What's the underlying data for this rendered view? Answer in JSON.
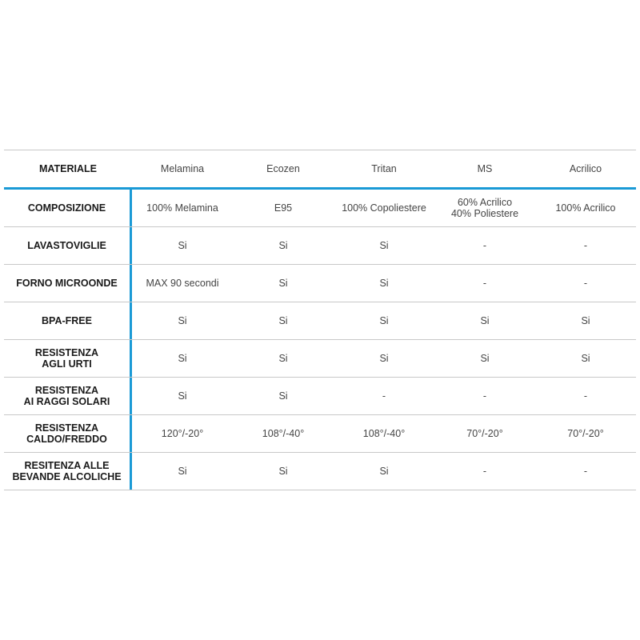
{
  "table": {
    "header": {
      "label": "MATERIALE",
      "columns": [
        "Melamina",
        "Ecozen",
        "Tritan",
        "MS",
        "Acrilico"
      ]
    },
    "rows": [
      {
        "label": "COMPOSIZIONE",
        "values": [
          "100% Melamina",
          "E95",
          "100% Copoliestere",
          "60% Acrilico\n40% Poliestere",
          "100% Acrilico"
        ]
      },
      {
        "label": "LAVASTOVIGLIE",
        "values": [
          "Si",
          "Si",
          "Si",
          "-",
          "-"
        ]
      },
      {
        "label": "FORNO MICROONDE",
        "values": [
          "MAX 90 secondi",
          "Si",
          "Si",
          "-",
          "-"
        ]
      },
      {
        "label": "BPA-FREE",
        "values": [
          "Si",
          "Si",
          "Si",
          "Si",
          "Si"
        ]
      },
      {
        "label": "RESISTENZA\nAGLI URTI",
        "values": [
          "Si",
          "Si",
          "Si",
          "Si",
          "Si"
        ]
      },
      {
        "label": "RESISTENZA\nAI RAGGI SOLARI",
        "values": [
          "Si",
          "Si",
          "-",
          "-",
          "-"
        ]
      },
      {
        "label": "RESISTENZA\nCALDO/FREDDO",
        "values": [
          "120°/-20°",
          "108°/-40°",
          "108°/-40°",
          "70°/-20°",
          "70°/-20°"
        ]
      },
      {
        "label": "RESITENZA ALLE\nBEVANDE ALCOLICHE",
        "values": [
          "Si",
          "Si",
          "Si",
          "-",
          "-"
        ]
      }
    ]
  },
  "colors": {
    "accent": "#1a9ad6",
    "divider": "#c8c8c8"
  }
}
